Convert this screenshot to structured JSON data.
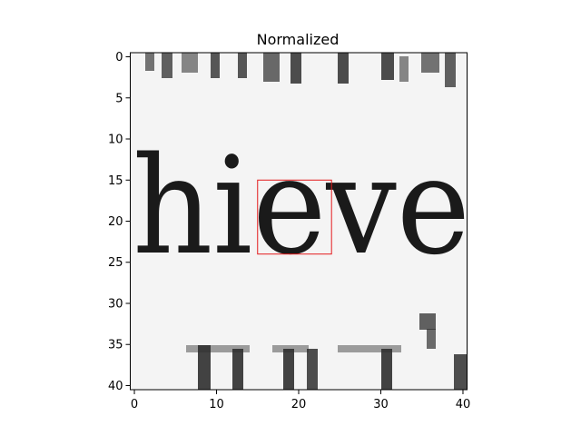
{
  "chart_data": {
    "type": "heatmap",
    "title": "Normalized",
    "colormap": "gray",
    "image_size": [
      41,
      41
    ],
    "xlim": [
      -0.5,
      40.5
    ],
    "ylim": [
      40.5,
      -0.5
    ],
    "x_ticks": [
      0,
      10,
      20,
      30,
      40
    ],
    "y_ticks": [
      0,
      5,
      10,
      15,
      20,
      25,
      30,
      35,
      40
    ],
    "x_tick_labels": [
      "0",
      "10",
      "20",
      "30",
      "40"
    ],
    "y_tick_labels": [
      "0",
      "5",
      "10",
      "15",
      "20",
      "25",
      "30",
      "35",
      "40"
    ],
    "image_text": "hieve",
    "highlight_box": {
      "x": [
        15,
        24
      ],
      "y": [
        15,
        24
      ],
      "color": "#e41a1c"
    }
  }
}
